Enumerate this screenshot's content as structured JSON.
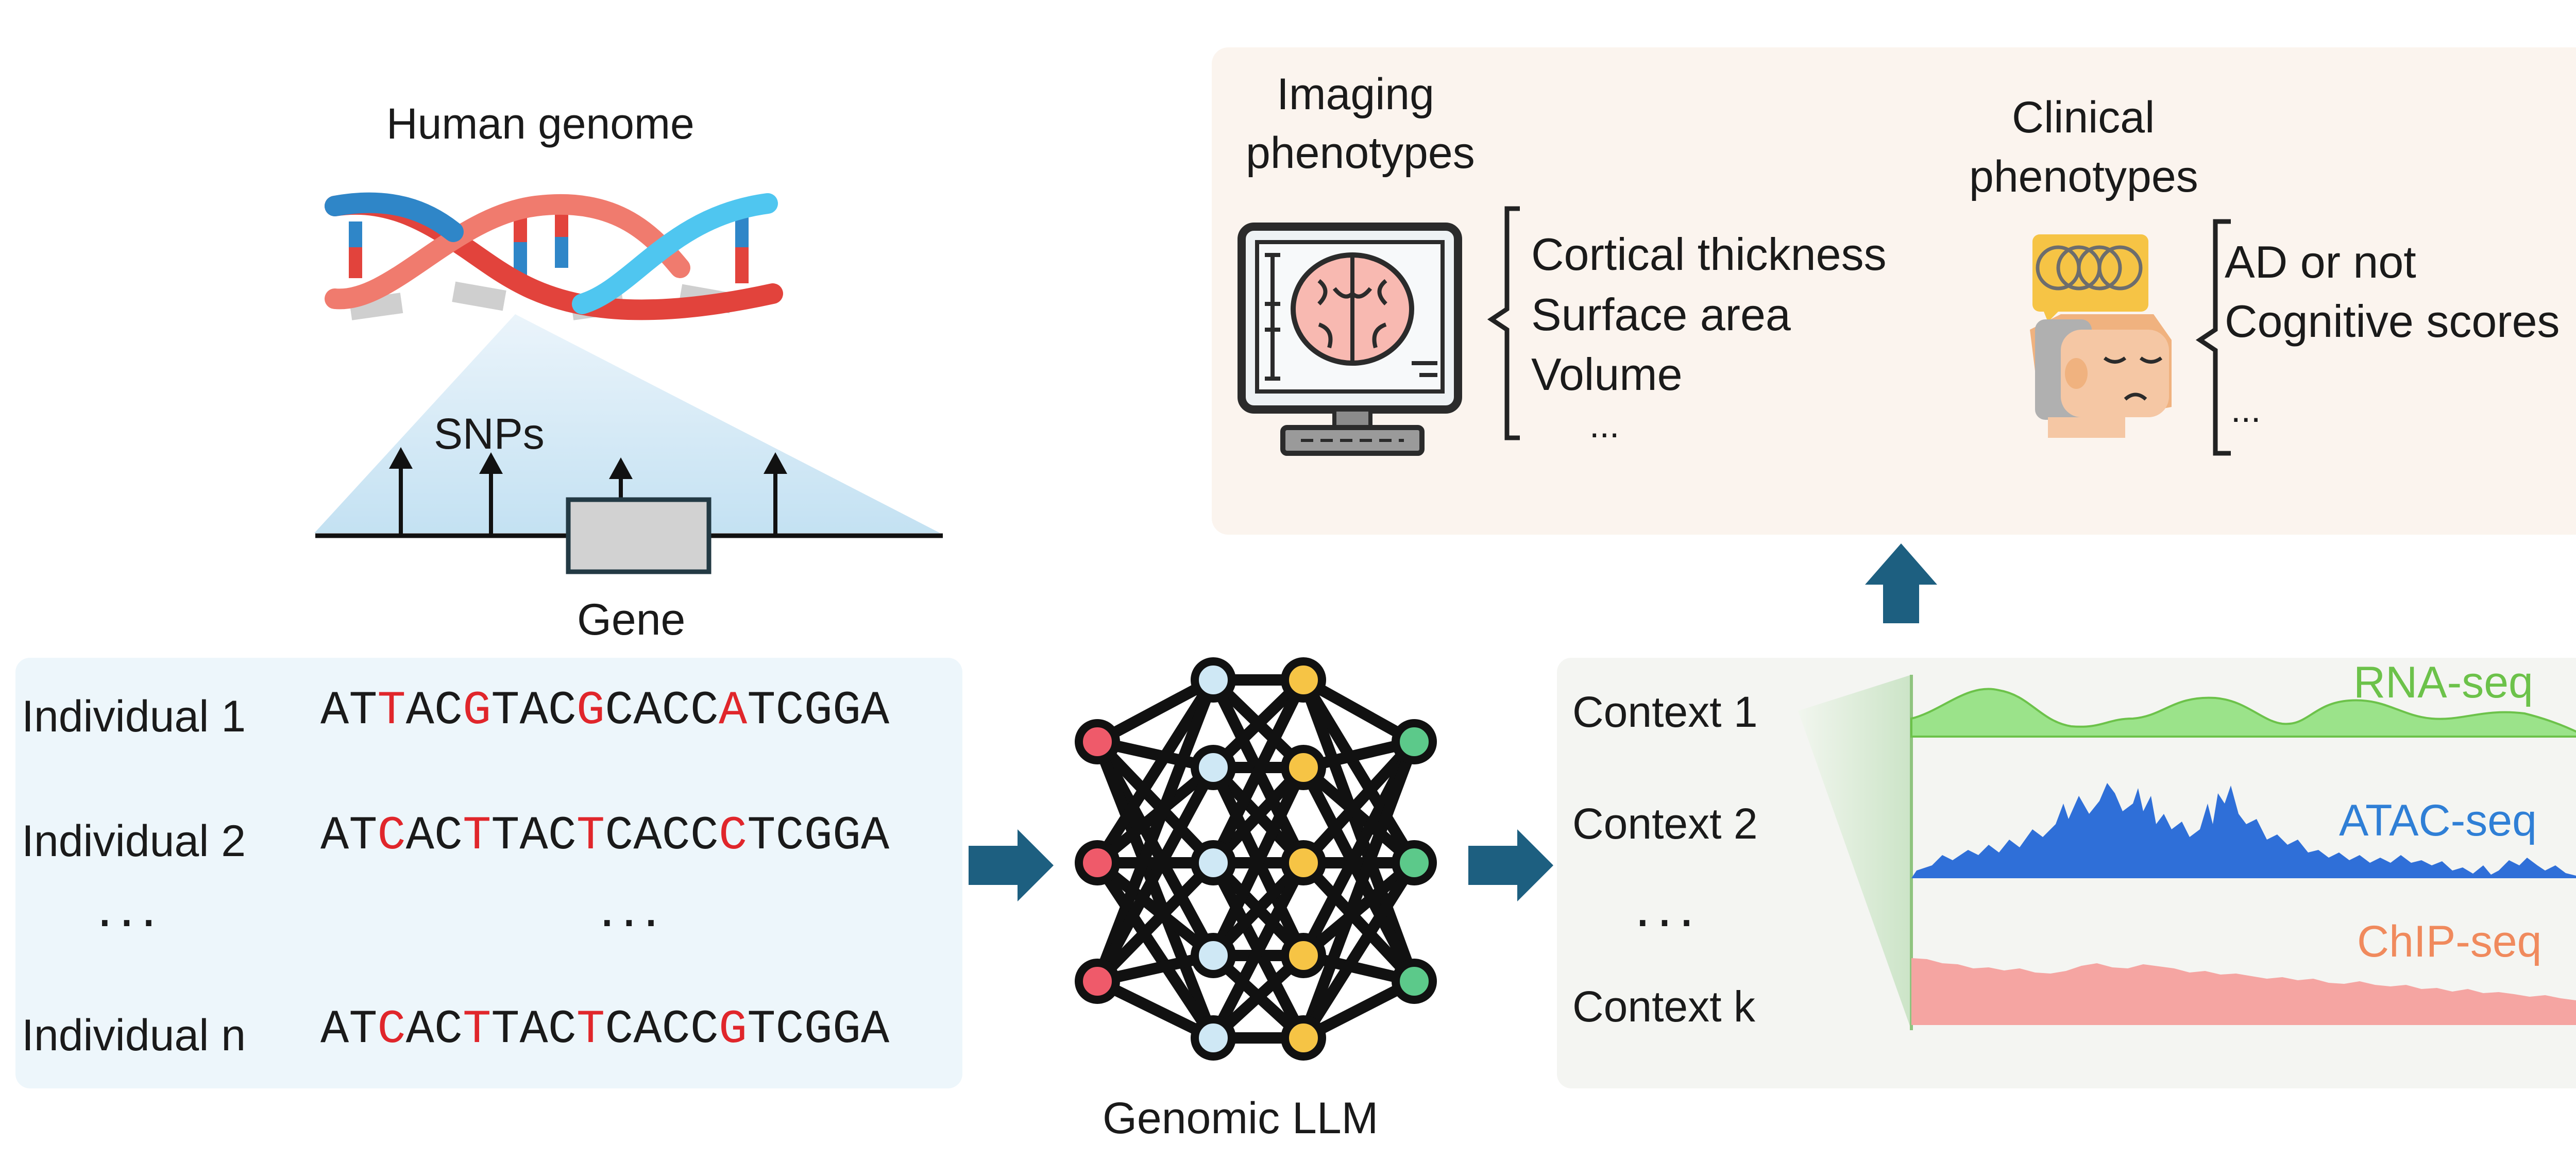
{
  "genome": {
    "title": "Human genome",
    "snps_label": "SNPs",
    "gene_label": "Gene"
  },
  "individuals": {
    "rows": [
      {
        "label": "Individual 1",
        "seq": [
          [
            "AT",
            0
          ],
          [
            "T",
            1
          ],
          [
            "AC",
            0
          ],
          [
            "G",
            1
          ],
          [
            "TAC",
            0
          ],
          [
            "G",
            1
          ],
          [
            "CACC",
            0
          ],
          [
            "A",
            1
          ],
          [
            "TCGGA",
            0
          ]
        ]
      },
      {
        "label": "Individual 2",
        "seq": [
          [
            "AT",
            0
          ],
          [
            "C",
            1
          ],
          [
            "AC",
            0
          ],
          [
            "T",
            1
          ],
          [
            "TAC",
            0
          ],
          [
            "T",
            1
          ],
          [
            "CACC",
            0
          ],
          [
            "C",
            1
          ],
          [
            "TCGGA",
            0
          ]
        ]
      },
      {
        "label": "Individual n",
        "seq": [
          [
            "AT",
            0
          ],
          [
            "C",
            1
          ],
          [
            "AC",
            0
          ],
          [
            "T",
            1
          ],
          [
            "TAC",
            0
          ],
          [
            "T",
            1
          ],
          [
            "CACC",
            0
          ],
          [
            "G",
            1
          ],
          [
            "TCGGA",
            0
          ]
        ]
      }
    ],
    "ellipsis_label": "···",
    "ellipsis_seq": "···"
  },
  "model": {
    "label": "Genomic LLM"
  },
  "contexts": {
    "labels": [
      "Context 1",
      "Context 2",
      "···",
      "Context k"
    ],
    "tracks": [
      {
        "name": "RNA-seq",
        "color": "#6cc24a"
      },
      {
        "name": "ATAC-seq",
        "color": "#2f7fd6"
      },
      {
        "name": "ChIP-seq",
        "color": "#f08a5d"
      }
    ]
  },
  "phenotypes": {
    "imaging": {
      "title_line1": "Imaging",
      "title_line2": "phenotypes",
      "items": [
        "Cortical thickness",
        "Surface area",
        "Volume",
        "..."
      ]
    },
    "clinical": {
      "title_line1": "Clinical",
      "title_line2": "phenotypes",
      "items": [
        "AD or not",
        "Cognitive scores",
        "..."
      ]
    }
  },
  "colors": {
    "arrow": "#1d5f80",
    "highlight": "#e0262b",
    "node_red": "#ef5a6a",
    "node_blue": "#cfe8f5",
    "node_yellow": "#f6c445",
    "node_green": "#5cc98a"
  }
}
